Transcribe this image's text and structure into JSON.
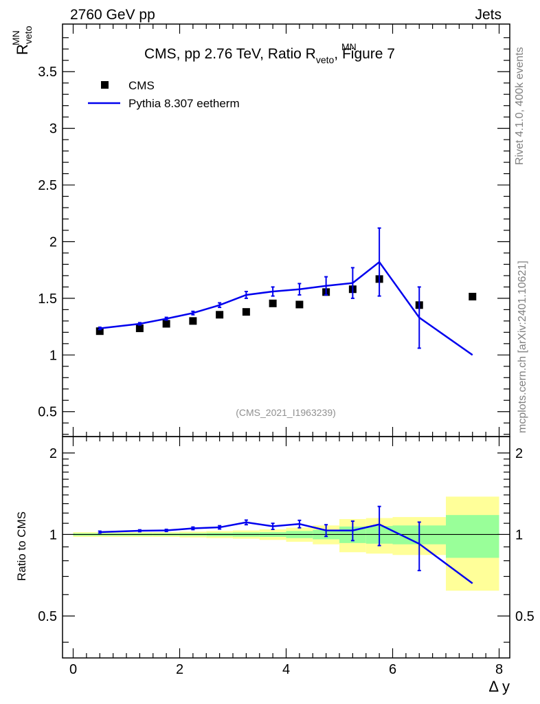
{
  "header": {
    "left": "2760 GeV pp",
    "right": "Jets"
  },
  "side": {
    "rivet": "Rivet 4.1.0,  400k events",
    "mcplots": "mcplots.cern.ch [arXiv:2401.10621]"
  },
  "chart_data": {
    "type": "scatter",
    "title": {
      "prefix": "CMS, pp 2.76 TeV, Ratio R",
      "sup": "MN",
      "sub": "veto",
      "suffix": ", Figure 7"
    },
    "ylabel": {
      "base": "R",
      "sup": "MN",
      "sub": "veto"
    },
    "xlabel": "Δ y",
    "watermark": "(CMS_2021_I1963239)",
    "xlim": [
      -0.2,
      8.2
    ],
    "xticks": [
      "0",
      "2",
      "4",
      "6",
      "8"
    ],
    "main": {
      "ylim": [
        0.28,
        3.92
      ],
      "yticks": [
        "0.5",
        "1",
        "1.5",
        "2",
        "2.5",
        "3",
        "3.5"
      ]
    },
    "ratio": {
      "ylabel": "Ratio to CMS",
      "ylim": [
        0.35,
        2.3
      ],
      "yticks": [
        "0.5",
        "1",
        "2"
      ]
    },
    "legend": {
      "position": "top-left",
      "data_label": "CMS",
      "mc_label": "Pythia 8.307 eetherm"
    },
    "colors": {
      "data": "#000000",
      "mc": "#0000ee",
      "band_inner": "#99ff99",
      "band_outer": "#ffff99"
    },
    "data_points": [
      {
        "x": 0.5,
        "y": 1.21
      },
      {
        "x": 1.25,
        "y": 1.235
      },
      {
        "x": 1.75,
        "y": 1.275
      },
      {
        "x": 2.25,
        "y": 1.3
      },
      {
        "x": 2.75,
        "y": 1.355
      },
      {
        "x": 3.25,
        "y": 1.38
      },
      {
        "x": 3.75,
        "y": 1.455
      },
      {
        "x": 4.25,
        "y": 1.445
      },
      {
        "x": 4.75,
        "y": 1.555
      },
      {
        "x": 5.25,
        "y": 1.58
      },
      {
        "x": 5.75,
        "y": 1.67
      },
      {
        "x": 6.5,
        "y": 1.44
      },
      {
        "x": 7.5,
        "y": 1.515
      }
    ],
    "bins": [
      {
        "lo": 0.0,
        "hi": 1.0,
        "inner": 0.01,
        "outer": 0.02
      },
      {
        "lo": 1.0,
        "hi": 1.5,
        "inner": 0.01,
        "outer": 0.02
      },
      {
        "lo": 1.5,
        "hi": 2.0,
        "inner": 0.01,
        "outer": 0.02
      },
      {
        "lo": 2.0,
        "hi": 2.5,
        "inner": 0.012,
        "outer": 0.025
      },
      {
        "lo": 2.5,
        "hi": 3.0,
        "inner": 0.015,
        "outer": 0.03
      },
      {
        "lo": 3.0,
        "hi": 3.5,
        "inner": 0.018,
        "outer": 0.035
      },
      {
        "lo": 3.5,
        "hi": 4.0,
        "inner": 0.02,
        "outer": 0.045
      },
      {
        "lo": 4.0,
        "hi": 4.5,
        "inner": 0.03,
        "outer": 0.06
      },
      {
        "lo": 4.5,
        "hi": 5.0,
        "inner": 0.04,
        "outer": 0.08
      },
      {
        "lo": 5.0,
        "hi": 5.5,
        "inner": 0.07,
        "outer": 0.14
      },
      {
        "lo": 5.5,
        "hi": 6.0,
        "inner": 0.075,
        "outer": 0.15
      },
      {
        "lo": 6.0,
        "hi": 7.0,
        "inner": 0.08,
        "outer": 0.16
      },
      {
        "lo": 7.0,
        "hi": 8.0,
        "inner": 0.18,
        "outer": 0.38
      }
    ],
    "mc_line": [
      {
        "x": 0.5,
        "y": 1.235
      },
      {
        "x": 1.25,
        "y": 1.275
      },
      {
        "x": 1.75,
        "y": 1.32
      },
      {
        "x": 2.25,
        "y": 1.37
      },
      {
        "x": 2.75,
        "y": 1.44
      },
      {
        "x": 3.25,
        "y": 1.53
      },
      {
        "x": 3.75,
        "y": 1.56
      },
      {
        "x": 4.25,
        "y": 1.58
      },
      {
        "x": 4.75,
        "y": 1.61
      },
      {
        "x": 5.25,
        "y": 1.635
      },
      {
        "x": 5.75,
        "y": 1.82
      },
      {
        "x": 6.5,
        "y": 1.33
      },
      {
        "x": 7.5,
        "y": 1.0
      }
    ],
    "mc_errors": [
      {
        "x": 0.5,
        "err": 0.01
      },
      {
        "x": 1.25,
        "err": 0.01
      },
      {
        "x": 1.75,
        "err": 0.012
      },
      {
        "x": 2.25,
        "err": 0.015
      },
      {
        "x": 2.75,
        "err": 0.02
      },
      {
        "x": 3.25,
        "err": 0.03
      },
      {
        "x": 3.75,
        "err": 0.04
      },
      {
        "x": 4.25,
        "err": 0.05
      },
      {
        "x": 4.75,
        "err": 0.08
      },
      {
        "x": 5.25,
        "err": 0.135
      },
      {
        "x": 5.75,
        "err": 0.3
      },
      {
        "x": 6.5,
        "err": 0.27
      },
      {
        "x": 7.5,
        "err": 0
      }
    ]
  }
}
